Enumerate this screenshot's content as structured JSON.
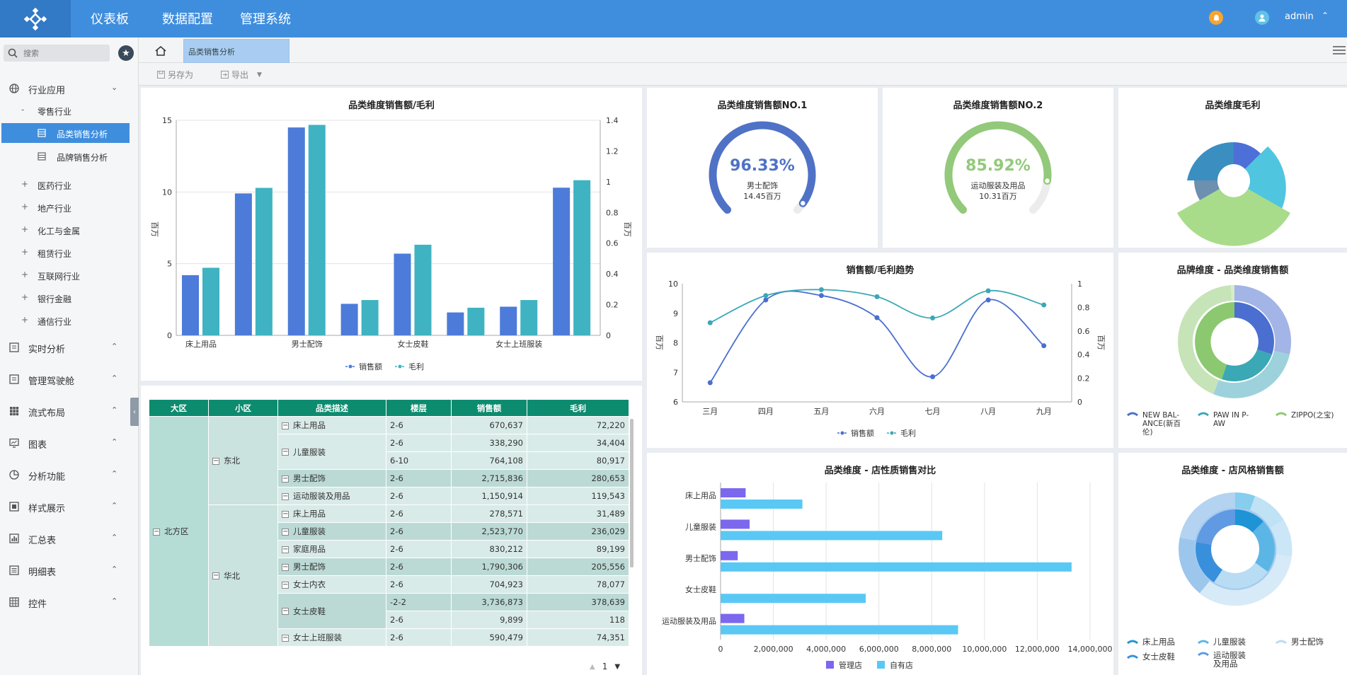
{
  "app": {
    "nav": [
      "仪表板",
      "数据配置",
      "管理系统"
    ],
    "user": "admin"
  },
  "sidebar": {
    "search_placeholder": "搜索",
    "industry": "行业应用",
    "retail": "零售行业",
    "retail_items": [
      "品类销售分析",
      "品牌销售分析"
    ],
    "sub_industries": [
      "医药行业",
      "地产行业",
      "化工与金属",
      "租赁行业",
      "互联网行业",
      "银行金融",
      "通信行业"
    ],
    "sections": [
      "实时分析",
      "管理驾驶舱",
      "流式布局",
      "图表",
      "分析功能",
      "样式展示",
      "汇总表",
      "明细表",
      "控件"
    ]
  },
  "tabs": {
    "active": "品类销售分析"
  },
  "toolbar": {
    "save_as": "另存为",
    "export": "导出"
  },
  "bar_panel": {
    "title": "品类维度销售额/毛利",
    "y_label": "百万",
    "y2_label": "百万",
    "legend": [
      "销售额",
      "毛利"
    ],
    "chart_data": {
      "type": "bar",
      "categories": [
        "床上用品",
        "",
        "男士配饰",
        "",
        "女士皮鞋",
        "",
        "女士上班服装",
        ""
      ],
      "series": [
        {
          "name": "销售额",
          "values": [
            4.2,
            9.9,
            14.5,
            2.2,
            5.7,
            1.6,
            2.0,
            10.3
          ]
        },
        {
          "name": "毛利",
          "values": [
            0.44,
            0.96,
            1.37,
            0.23,
            0.59,
            0.18,
            0.23,
            1.01
          ]
        }
      ],
      "ylim": [
        0,
        15
      ],
      "y2lim": [
        0,
        1.4
      ],
      "yticks": [
        0,
        5,
        10,
        15
      ],
      "y2ticks": [
        0,
        0.2,
        0.4,
        0.6,
        0.8,
        1,
        1.2,
        1.4
      ],
      "colors": [
        "#4d7bd9",
        "#3fb3c2"
      ]
    }
  },
  "gauge1": {
    "title": "品类维度销售额NO.1",
    "value_text": "96.33%",
    "label": "男士配饰",
    "amount": "14.45百万",
    "chart_data": {
      "type": "gauge",
      "value": 96.33
    },
    "color": "#4f72c6"
  },
  "gauge2": {
    "title": "品类维度销售额NO.2",
    "value_text": "85.92%",
    "label": "运动服装及用品",
    "amount": "10.31百万",
    "chart_data": {
      "type": "gauge",
      "value": 85.92
    },
    "color": "#93c97a"
  },
  "rose": {
    "title": "品类维度毛利"
  },
  "trend": {
    "title": "销售额/毛利趋势",
    "y_label": "百万",
    "y2_label": "百万",
    "legend": [
      "销售额",
      "毛利"
    ],
    "chart_data": {
      "type": "line",
      "categories": [
        "三月",
        "四月",
        "五月",
        "六月",
        "七月",
        "八月",
        "九月"
      ],
      "series": [
        {
          "name": "销售额",
          "values": [
            6.65,
            9.45,
            9.6,
            8.85,
            6.85,
            9.45,
            7.9
          ]
        },
        {
          "name": "毛利",
          "values": [
            0.67,
            0.9,
            0.95,
            0.89,
            0.71,
            0.94,
            0.82
          ]
        }
      ],
      "ylim": [
        6,
        10
      ],
      "y2lim": [
        0,
        1
      ],
      "yticks": [
        6,
        7,
        8,
        9,
        10
      ],
      "y2ticks": [
        0,
        0.2,
        0.4,
        0.6,
        0.8,
        1
      ],
      "colors": [
        "#4a6fd0",
        "#3aa8b5"
      ]
    }
  },
  "brand_donut": {
    "title": "品牌维度 - 品类维度销售额",
    "legend": [
      "NEW BAL-ANCE(新百伦)",
      "PAW IN P-AW",
      "ZIPPO(之宝)"
    ]
  },
  "hbar": {
    "title": "品类维度 - 店性质销售对比",
    "legend": [
      "管理店",
      "自有店"
    ],
    "chart_data": {
      "type": "bar",
      "orientation": "horizontal",
      "categories": [
        "床上用品",
        "儿童服装",
        "男士配饰",
        "女士皮鞋",
        "运动服装及用品"
      ],
      "series": [
        {
          "name": "管理店",
          "values": [
            950000,
            1100000,
            650000,
            0,
            900000
          ]
        },
        {
          "name": "自有店",
          "values": [
            3100000,
            8400000,
            13300000,
            5500000,
            9000000
          ]
        }
      ],
      "xlim": [
        0,
        14000000
      ],
      "xticks": [
        "0",
        "2,000,000",
        "4,000,000",
        "6,000,000",
        "8,000,000",
        "10,000,000",
        "12,000,000",
        "14,000,000"
      ],
      "colors": [
        "#7b68ee",
        "#5ac8f5"
      ]
    }
  },
  "style_donut": {
    "title": "品类维度 - 店风格销售额",
    "legend": [
      "床上用品",
      "儿童服装",
      "男士配饰",
      "女士皮鞋",
      "运动服装及用品"
    ]
  },
  "table": {
    "headers": [
      "大区",
      "小区",
      "品类描述",
      "楼层",
      "销售额",
      "毛利"
    ],
    "region": "北方区",
    "area1": "东北",
    "area2": "华北",
    "rows": [
      [
        "床上用品",
        "2-6",
        "670,637",
        "72,220"
      ],
      [
        "儿童服装",
        "2-6",
        "338,290",
        "34,404"
      ],
      [
        "",
        "6-10",
        "764,108",
        "80,917"
      ],
      [
        "男士配饰",
        "2-6",
        "2,715,836",
        "280,653"
      ],
      [
        "运动服装及用品",
        "2-6",
        "1,150,914",
        "119,543"
      ],
      [
        "床上用品",
        "2-6",
        "278,571",
        "31,489"
      ],
      [
        "儿童服装",
        "2-6",
        "2,523,770",
        "236,029"
      ],
      [
        "家庭用品",
        "2-6",
        "830,212",
        "89,199"
      ],
      [
        "男士配饰",
        "2-6",
        "1,790,306",
        "205,556"
      ],
      [
        "女士内衣",
        "2-6",
        "704,923",
        "78,077"
      ],
      [
        "女士皮鞋",
        "-2-2",
        "3,736,873",
        "378,639"
      ],
      [
        "",
        "2-6",
        "9,899",
        "118"
      ],
      [
        "女士上班服装",
        "2-6",
        "590,479",
        "74,351"
      ]
    ],
    "page": "1"
  }
}
